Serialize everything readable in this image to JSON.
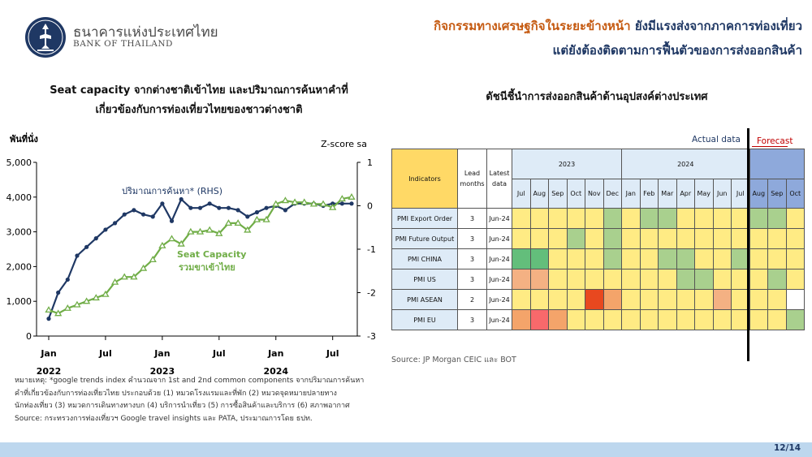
{
  "header": {
    "bank_name_th": "ธนาคารแห่งประเทศไทย",
    "bank_name_en": "BANK OF THAILAND",
    "headline_line1_a": "กิจกรรมทางเศรษฐกิจในระยะข้างหน้า",
    "headline_line1_b": " ยังมีแรงส่งจากภาคการท่องเที่ยว",
    "headline_line2": "แต่ยังต้องติดตามการฟื้นตัวของการส่งออกสินค้า"
  },
  "left_chart": {
    "title_line1": "Seat capacity จากต่างชาติเข้าไทย และปริมาณการค้นหาคำที่",
    "title_line2": "เกี่ยวข้องกับการท่องเที่ยวไทยของชาวต่างชาติ",
    "note_line1": "หมายเหตุ: *google trends index คำนวณจาก 1st and 2nd  common components จากปริมาณการค้นหา",
    "note_line2": "คำที่เกี่ยวข้องกับการท่องเที่ยวไทย ประกอบด้วย (1) หมวดโรงแรมและที่พัก (2) หมวดจุดหมายปลายทาง",
    "note_line3": "นักท่องเที่ยว (3) หมวดการเดินทางทางบก (4) บริการนำเที่ยว (5) การซื้อสินค้าและบริการ (6) สภาพอากาศ",
    "source": "Source: กระทรวงการท่องเที่ยวฯ Google travel insights และ PATA, ประมาณการโดย ธปท."
  },
  "right_chart": {
    "title": "ดัชนีชี้นำการส่งออกสินค้าด้านอุปสงค์ต่างประเทศ",
    "actual_label": "Actual data",
    "forecast_label": "Forecast",
    "source": "Source: JP Morgan CEIC และ BOT"
  },
  "chart_data": [
    {
      "type": "line",
      "y_left_label": "พันที่นั่ง",
      "y_right_label": "Z-score sa",
      "ylim_left": [
        0,
        5000
      ],
      "ylim_right": [
        -3,
        1
      ],
      "y_left_ticks": [
        "0",
        "1,000",
        "2,000",
        "3,000",
        "4,000",
        "5,000"
      ],
      "y_right_ticks": [
        "-3",
        "-2",
        "-1",
        "0",
        "1"
      ],
      "x_tick_labels": [
        "Jan",
        "Jul",
        "Jan",
        "Jul",
        "Jan",
        "Jul"
      ],
      "x_year_labels": [
        "2022",
        "2023",
        "2024"
      ],
      "x": [
        "2022-01",
        "2022-02",
        "2022-03",
        "2022-04",
        "2022-05",
        "2022-06",
        "2022-07",
        "2022-08",
        "2022-09",
        "2022-10",
        "2022-11",
        "2022-12",
        "2023-01",
        "2023-02",
        "2023-03",
        "2023-04",
        "2023-05",
        "2023-06",
        "2023-07",
        "2023-08",
        "2023-09",
        "2023-10",
        "2023-11",
        "2023-12",
        "2024-01",
        "2024-02",
        "2024-03",
        "2024-04",
        "2024-05",
        "2024-06",
        "2024-07",
        "2024-08",
        "2024-09"
      ],
      "series": [
        {
          "name": "ปริมาณการค้นหา* (RHS)",
          "axis": "right",
          "color": "#1f3864",
          "values": [
            -2.6,
            -2.0,
            -1.7,
            -1.15,
            -0.95,
            -0.75,
            -0.55,
            -0.4,
            -0.2,
            -0.1,
            -0.2,
            -0.25,
            0.05,
            -0.35,
            0.15,
            -0.05,
            -0.05,
            0.05,
            -0.05,
            -0.05,
            -0.1,
            -0.25,
            -0.15,
            -0.05,
            0.0,
            -0.1,
            0.05,
            0.05,
            0.05,
            0.0,
            0.05,
            0.05,
            0.05
          ]
        },
        {
          "name": "Seat Capacity รวมขาเข้าไทย",
          "axis": "left",
          "color": "#70ad47",
          "values": [
            750,
            650,
            800,
            900,
            1000,
            1100,
            1200,
            1550,
            1700,
            1700,
            1950,
            2200,
            2600,
            2800,
            2650,
            3000,
            3000,
            3050,
            2950,
            3250,
            3250,
            3050,
            3350,
            3350,
            3800,
            3900,
            3850,
            3850,
            3800,
            3800,
            3700,
            3950,
            4000
          ]
        }
      ],
      "legend_rhs_label": "ปริมาณการค้นหา* (RHS)",
      "legend_seat_line1": "Seat Capacity",
      "legend_seat_line2": "รวมขาเข้าไทย"
    },
    {
      "type": "heatmap",
      "header_indicators": "Indicators",
      "header_lead": "Lead months",
      "header_latest": "Latest data",
      "years": [
        "2023",
        "2024"
      ],
      "months": [
        "Jul",
        "Aug",
        "Sep",
        "Oct",
        "Nov",
        "Dec",
        "Jan",
        "Feb",
        "Mar",
        "Apr",
        "May",
        "Jun",
        "Jul",
        "Aug",
        "Sep",
        "Oct"
      ],
      "forecast_months": [
        "Aug",
        "Sep",
        "Oct"
      ],
      "colors": {
        "Y": "#ffeb84",
        "G": "#a9d08e",
        "DG": "#63be7b",
        "LO": "#f4b183",
        "O": "#f4a46a",
        "R": "#f8696b",
        "DR": "#e8481f",
        "W": "#ffffff"
      },
      "rows": [
        {
          "indicator": "PMI Export Order",
          "lead": "3",
          "latest": "Jun-24",
          "cells": [
            "Y",
            "Y",
            "Y",
            "Y",
            "Y",
            "G",
            "Y",
            "G",
            "G",
            "Y",
            "Y",
            "Y",
            "Y",
            "G",
            "G",
            "Y"
          ]
        },
        {
          "indicator": "PMI Future Output",
          "lead": "3",
          "latest": "Jun-24",
          "cells": [
            "Y",
            "Y",
            "Y",
            "G",
            "Y",
            "G",
            "Y",
            "Y",
            "Y",
            "Y",
            "Y",
            "Y",
            "Y",
            "Y",
            "Y",
            "Y"
          ]
        },
        {
          "indicator": "PMI CHINA",
          "lead": "3",
          "latest": "Jun-24",
          "cells": [
            "DG",
            "DG",
            "Y",
            "Y",
            "Y",
            "G",
            "Y",
            "Y",
            "G",
            "G",
            "Y",
            "Y",
            "G",
            "Y",
            "Y",
            "Y"
          ]
        },
        {
          "indicator": "PMI US",
          "lead": "3",
          "latest": "Jun-24",
          "cells": [
            "LO",
            "LO",
            "Y",
            "Y",
            "Y",
            "Y",
            "Y",
            "Y",
            "Y",
            "G",
            "G",
            "Y",
            "Y",
            "Y",
            "G",
            "Y"
          ]
        },
        {
          "indicator": "PMI ASEAN",
          "lead": "2",
          "latest": "Jun-24",
          "cells": [
            "Y",
            "Y",
            "Y",
            "Y",
            "DR",
            "O",
            "Y",
            "Y",
            "Y",
            "Y",
            "Y",
            "LO",
            "Y",
            "Y",
            "Y",
            "W"
          ]
        },
        {
          "indicator": "PMI EU",
          "lead": "3",
          "latest": "Jun-24",
          "cells": [
            "O",
            "R",
            "O",
            "Y",
            "Y",
            "Y",
            "Y",
            "Y",
            "Y",
            "Y",
            "Y",
            "Y",
            "Y",
            "Y",
            "Y",
            "G"
          ]
        }
      ]
    }
  ],
  "footer": {
    "page": "12/14"
  }
}
